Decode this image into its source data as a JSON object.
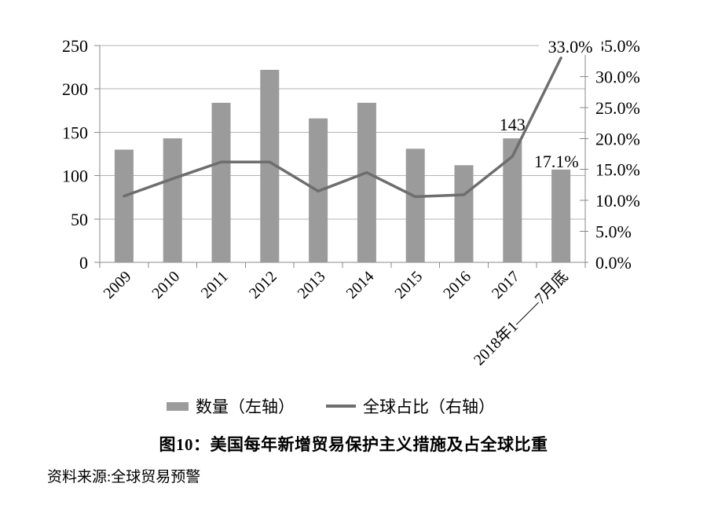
{
  "figure": {
    "caption": "图10：美国每年新增贸易保护主义措施及占全球比重",
    "source": "资料来源:全球贸易预警"
  },
  "legend": {
    "bar_label": "数量（左轴）",
    "line_label": "全球占比（右轴）"
  },
  "colors": {
    "bar": "#9b9b9b",
    "line": "#6e6e6e",
    "grid": "#b3b3b3",
    "axis": "#8a8a8a",
    "text": "#000000"
  },
  "chart_data": {
    "type": "bar",
    "title": "图10：美国每年新增贸易保护主义措施及占全球比重",
    "categories": [
      "2009",
      "2010",
      "2011",
      "2012",
      "2013",
      "2014",
      "2015",
      "2016",
      "2017",
      "2018年1——7月底"
    ],
    "series": [
      {
        "name": "数量（左轴）",
        "type": "bar",
        "axis": "left",
        "values": [
          130,
          143,
          184,
          222,
          166,
          184,
          131,
          112,
          143,
          107
        ]
      },
      {
        "name": "全球占比（右轴）",
        "type": "line",
        "axis": "right",
        "unit": "%",
        "values": [
          10.7,
          13.5,
          16.2,
          16.2,
          11.5,
          14.5,
          10.6,
          10.9,
          17.1,
          33.0
        ]
      }
    ],
    "left_axis": {
      "min": 0,
      "max": 250,
      "step": 50,
      "tick_labels": [
        "0",
        "50",
        "100",
        "150",
        "200",
        "250"
      ]
    },
    "right_axis": {
      "min": 0,
      "max": 35,
      "step": 5,
      "tick_labels": [
        "0.0%",
        "5.0%",
        "10.0%",
        "15.0%",
        "20.0%",
        "25.0%",
        "30.0%",
        "35.0%"
      ]
    },
    "annotations": [
      {
        "text": "143",
        "category": "2017",
        "series": "数量（左轴）",
        "value": 143
      },
      {
        "text": "17.1%",
        "category": "2017",
        "series": "全球占比（右轴）",
        "value": 17.1
      },
      {
        "text": "33.0%",
        "category": "2018年1——7月底",
        "series": "全球占比（右轴）",
        "value": 33.0
      }
    ],
    "grid": "horizontal",
    "legend_position": "bottom"
  }
}
